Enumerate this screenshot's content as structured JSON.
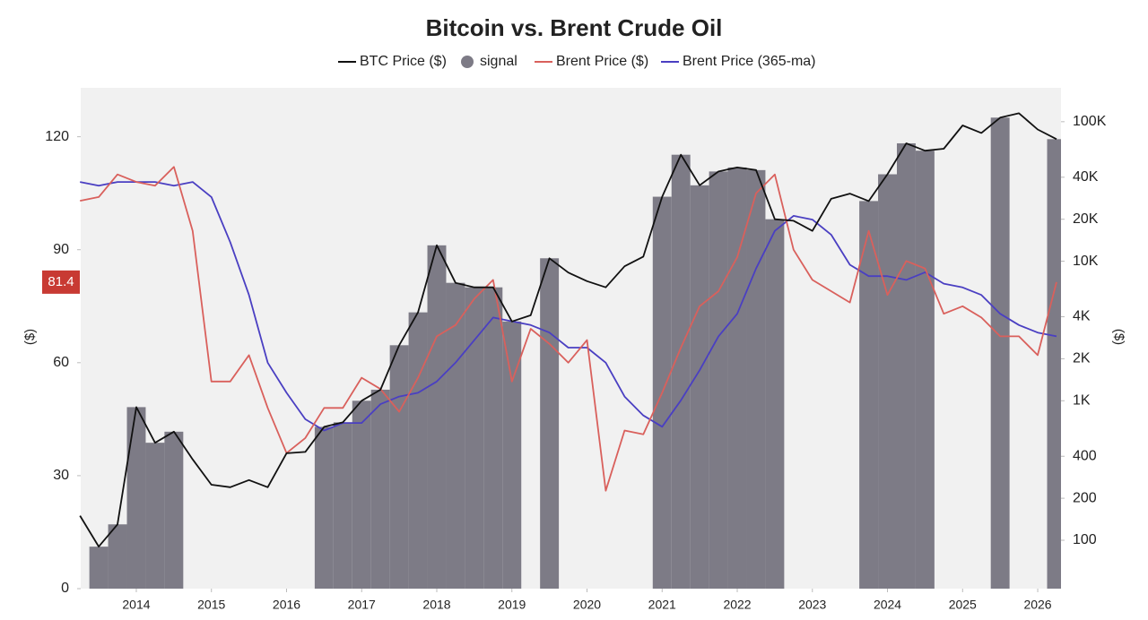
{
  "chart_data": {
    "type": "line",
    "title": "Bitcoin vs. Brent Crude Oil",
    "y_label": "($)",
    "y2_label": "($)",
    "x": [
      2013.25,
      2013.5,
      2013.75,
      2014,
      2014.25,
      2014.5,
      2014.75,
      2015,
      2015.25,
      2015.5,
      2015.75,
      2016,
      2016.25,
      2016.5,
      2016.75,
      2017,
      2017.25,
      2017.5,
      2017.75,
      2018,
      2018.25,
      2018.5,
      2018.75,
      2019,
      2019.25,
      2019.5,
      2019.75,
      2020,
      2020.25,
      2020.5,
      2020.75,
      2021,
      2021.25,
      2021.5,
      2021.75,
      2022,
      2022.25,
      2022.5,
      2022.75,
      2023,
      2023.25,
      2023.5,
      2023.75,
      2024,
      2024.25,
      2024.5,
      2024.75,
      2025,
      2025.25,
      2025.5,
      2025.75,
      2026,
      2026.25
    ],
    "xlim": [
      2013.26,
      2026.31
    ],
    "xticks": [
      2014,
      2015,
      2016,
      2017,
      2018,
      2019,
      2020,
      2021,
      2022,
      2023,
      2024,
      2025,
      2026
    ],
    "ylim": [
      0,
      133
    ],
    "yticks": [
      0,
      30,
      60,
      90,
      120
    ],
    "y2scale": "log",
    "y2lim": [
      45,
      175000
    ],
    "y2ticks": [
      100,
      200,
      400,
      {
        "value": 1000,
        "label": "1K"
      },
      {
        "value": 2000,
        "label": "2K"
      },
      {
        "value": 4000,
        "label": "4K"
      },
      {
        "value": 10000,
        "label": "10K"
      },
      {
        "value": 20000,
        "label": "20K"
      },
      {
        "value": 40000,
        "label": "40K"
      },
      {
        "value": 100000,
        "label": "100K"
      }
    ],
    "series": [
      {
        "name": "BTC Price ($)",
        "color": "#111111",
        "axis": "y2",
        "type": "line",
        "values": [
          150,
          90,
          130,
          900,
          500,
          600,
          380,
          250,
          240,
          270,
          240,
          420,
          430,
          650,
          700,
          1000,
          1200,
          2500,
          4300,
          13000,
          7000,
          6500,
          6500,
          3700,
          4100,
          10500,
          8300,
          7200,
          6500,
          9200,
          10800,
          29000,
          58000,
          35000,
          44000,
          47000,
          45000,
          20000,
          19500,
          16500,
          28000,
          30500,
          27000,
          42000,
          70000,
          62000,
          64000,
          94000,
          83000,
          107000,
          115000,
          88000,
          75000
        ]
      },
      {
        "name": "signal",
        "color": "#7d7b86",
        "axis": "y2",
        "type": "bar",
        "values": [
          null,
          90,
          130,
          900,
          500,
          600,
          null,
          null,
          null,
          null,
          null,
          null,
          null,
          650,
          700,
          1000,
          1200,
          2500,
          4300,
          13000,
          7000,
          6500,
          6500,
          3700,
          null,
          10500,
          null,
          null,
          null,
          null,
          null,
          29000,
          58000,
          35000,
          44000,
          47000,
          45000,
          20000,
          null,
          null,
          null,
          null,
          27000,
          42000,
          70000,
          62000,
          null,
          null,
          null,
          107000,
          null,
          null,
          75000
        ]
      },
      {
        "name": "Brent Price ($)",
        "color": "#d9605c",
        "axis": "y",
        "type": "line",
        "values": [
          103,
          104,
          110,
          108,
          107,
          112,
          95,
          55,
          55,
          62,
          48,
          36,
          40,
          48,
          48,
          56,
          53,
          47,
          56,
          67,
          70,
          77,
          82,
          55,
          69,
          65,
          60,
          66,
          26,
          42,
          41,
          52,
          64,
          75,
          79,
          88,
          105,
          110,
          90,
          82,
          79,
          76,
          95,
          78,
          87,
          85,
          73,
          75,
          72,
          67,
          67,
          62,
          81.4
        ]
      },
      {
        "name": "Brent Price (365-ma)",
        "color": "#4a3fc2",
        "axis": "y",
        "type": "line",
        "values": [
          108,
          107,
          108,
          108,
          108,
          107,
          108,
          104,
          92,
          78,
          60,
          52,
          45,
          42,
          44,
          44,
          49,
          51,
          52,
          55,
          60,
          66,
          72,
          71,
          70,
          68,
          64,
          64,
          60,
          51,
          46,
          43,
          50,
          58,
          67,
          73,
          85,
          95,
          99,
          98,
          94,
          86,
          83,
          83,
          82,
          84,
          81,
          80,
          78,
          73,
          70,
          68,
          67
        ]
      }
    ]
  }
}
